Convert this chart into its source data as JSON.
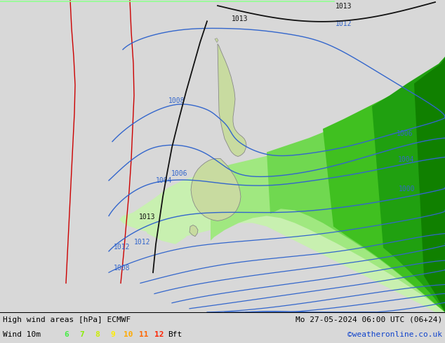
{
  "title_left": "High wind areas [hPa] ECMWF",
  "title_right": "Mo 27-05-2024 06:00 UTC (06+24)",
  "subtitle_left": "Wind 10m",
  "legend_nums": [
    "6",
    "7",
    "8",
    "9",
    "10",
    "11",
    "12"
  ],
  "legend_colors_bft": [
    "#44ee44",
    "#88ee00",
    "#ccee00",
    "#ffee00",
    "#ffaa00",
    "#ff6600",
    "#ff2200"
  ],
  "credit": "©weatheronline.co.uk",
  "bg_color": "#d8d8d8",
  "map_bg": "#d8d8d8",
  "nz_land_color": "#c8dba0",
  "nz_edge_color": "#888888",
  "isobar_blue": "#3366cc",
  "isobar_black": "#111111",
  "isobar_red": "#cc0000",
  "wind_colors": [
    "#c8f0b0",
    "#a0e880",
    "#70d850",
    "#40c020",
    "#20a010",
    "#108000"
  ],
  "fig_width": 6.34,
  "fig_height": 4.9,
  "dpi": 100
}
